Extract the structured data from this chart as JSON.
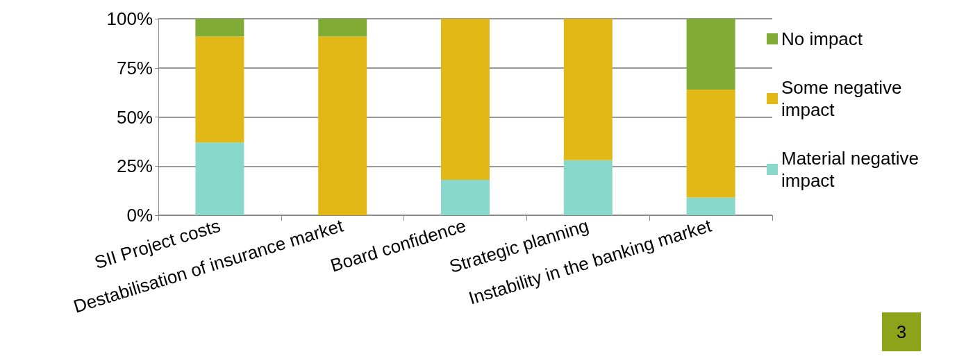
{
  "chart_data": {
    "type": "bar",
    "stacked": true,
    "categories": [
      "SII Project costs",
      "Destabilisation of insurance market",
      "Board confidence",
      "Strategic planning",
      "Instability in the banking market"
    ],
    "series": [
      {
        "name": "Material negative impact",
        "color": "#88d8cc",
        "values": [
          37,
          0,
          18,
          28,
          9
        ]
      },
      {
        "name": "Some negative impact",
        "color": "#e2b816",
        "values": [
          54,
          91,
          82,
          72,
          55
        ]
      },
      {
        "name": "No impact",
        "color": "#80ab35",
        "values": [
          9,
          9,
          0,
          0,
          36
        ]
      }
    ],
    "ylim": [
      0,
      100
    ],
    "yticks": [
      {
        "value": 0,
        "label": "0%"
      },
      {
        "value": 25,
        "label": "25%"
      },
      {
        "value": 50,
        "label": "50%"
      },
      {
        "value": 75,
        "label": "75%"
      },
      {
        "value": 100,
        "label": "100%"
      }
    ],
    "grid": "y",
    "legend": "right",
    "annotations": [
      "3"
    ]
  }
}
